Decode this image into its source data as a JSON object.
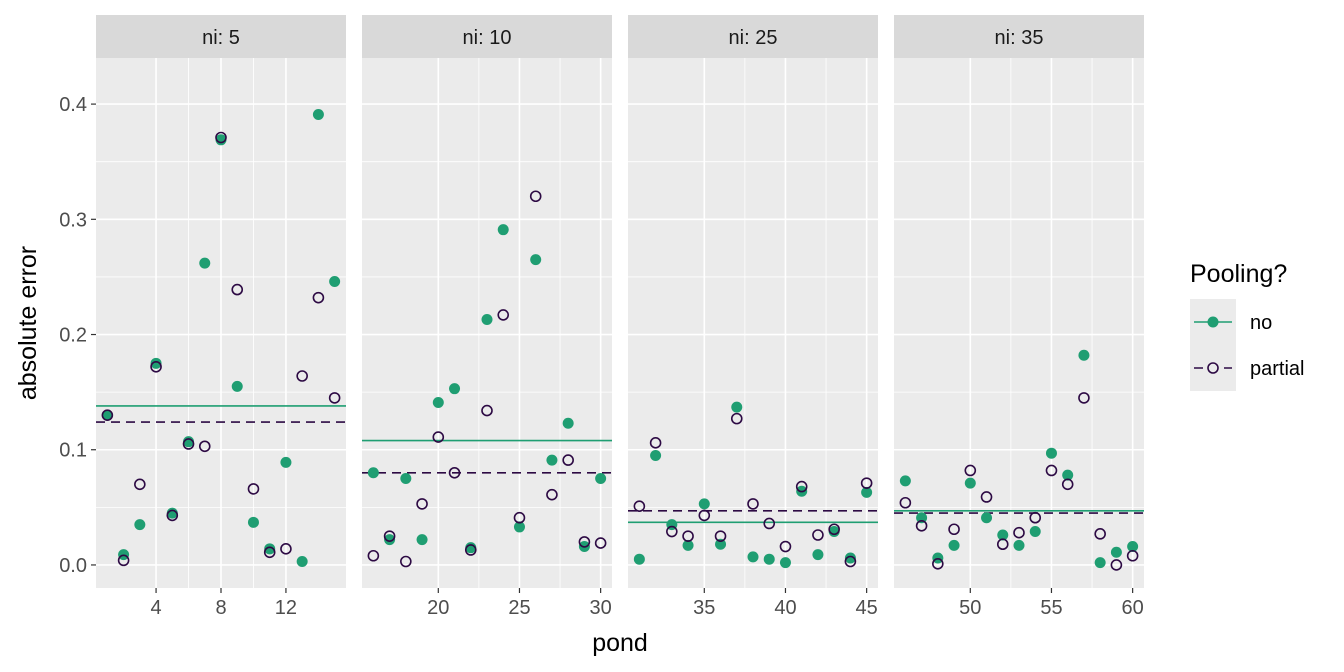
{
  "chart_data": {
    "type": "scatter",
    "xlabel": "pond",
    "ylabel": "absolute error",
    "ylim": [
      -0.02,
      0.44
    ],
    "yticks": [
      0.0,
      0.1,
      0.2,
      0.3,
      0.4
    ],
    "ytick_labels": [
      "0.0",
      "0.1",
      "0.2",
      "0.3",
      "0.4"
    ],
    "grid": true,
    "legend": {
      "title": "Pooling?",
      "position": "right",
      "entries": [
        {
          "label": "no",
          "color": "#1f9e72",
          "marker": "filled-circle",
          "line": "solid"
        },
        {
          "label": "partial",
          "color": "#2d0a44",
          "marker": "open-circle",
          "line": "dashed"
        }
      ]
    },
    "panels": [
      {
        "strip": "ni: 5",
        "xlim": [
          0.3,
          15.7
        ],
        "xticks": [
          4,
          8,
          12
        ],
        "xtick_labels": [
          "4",
          "8",
          "12"
        ],
        "x": [
          1,
          2,
          3,
          4,
          5,
          6,
          7,
          8,
          9,
          10,
          11,
          12,
          13,
          14,
          15
        ],
        "no": [
          0.13,
          0.009,
          0.035,
          0.175,
          0.045,
          0.107,
          0.262,
          0.369,
          0.155,
          0.037,
          0.014,
          0.089,
          0.003,
          0.391,
          0.246
        ],
        "partial": [
          0.13,
          0.004,
          0.07,
          0.172,
          0.043,
          0.105,
          0.103,
          0.371,
          0.239,
          0.066,
          0.011,
          0.014,
          0.164,
          0.232,
          0.145
        ],
        "no_mean": 0.138,
        "partial_mean": 0.124
      },
      {
        "strip": "ni: 10",
        "xlim": [
          15.3,
          30.7
        ],
        "xticks": [
          20,
          25,
          30
        ],
        "xtick_labels": [
          "20",
          "25",
          "30"
        ],
        "x": [
          16,
          17,
          18,
          19,
          20,
          21,
          22,
          23,
          24,
          25,
          26,
          27,
          28,
          29,
          30
        ],
        "no": [
          0.08,
          0.022,
          0.075,
          0.022,
          0.141,
          0.153,
          0.015,
          0.213,
          0.291,
          0.033,
          0.265,
          0.091,
          0.123,
          0.016,
          0.075
        ],
        "partial": [
          0.008,
          0.025,
          0.003,
          0.053,
          0.111,
          0.08,
          0.013,
          0.134,
          0.217,
          0.041,
          0.32,
          0.061,
          0.091,
          0.02,
          0.019
        ],
        "no_mean": 0.108,
        "partial_mean": 0.08
      },
      {
        "strip": "ni: 25",
        "xlim": [
          30.3,
          45.7
        ],
        "xticks": [
          35,
          40,
          45
        ],
        "xtick_labels": [
          "35",
          "40",
          "45"
        ],
        "x": [
          31,
          32,
          33,
          34,
          35,
          36,
          37,
          38,
          39,
          40,
          41,
          42,
          43,
          44,
          45
        ],
        "no": [
          0.005,
          0.095,
          0.035,
          0.017,
          0.053,
          0.018,
          0.137,
          0.007,
          0.005,
          0.002,
          0.064,
          0.009,
          0.029,
          0.006,
          0.063
        ],
        "partial": [
          0.051,
          0.106,
          0.029,
          0.025,
          0.043,
          0.025,
          0.127,
          0.053,
          0.036,
          0.016,
          0.068,
          0.026,
          0.031,
          0.003,
          0.071
        ],
        "no_mean": 0.037,
        "partial_mean": 0.047
      },
      {
        "strip": "ni: 35",
        "xlim": [
          45.3,
          60.7
        ],
        "xticks": [
          50,
          55,
          60
        ],
        "xtick_labels": [
          "50",
          "55",
          "60"
        ],
        "x": [
          46,
          47,
          48,
          49,
          50,
          51,
          52,
          53,
          54,
          55,
          56,
          57,
          58,
          59,
          60
        ],
        "no": [
          0.073,
          0.041,
          0.006,
          0.017,
          0.071,
          0.041,
          0.026,
          0.017,
          0.029,
          0.097,
          0.078,
          0.182,
          0.002,
          0.011,
          0.016
        ],
        "partial": [
          0.054,
          0.034,
          0.001,
          0.031,
          0.082,
          0.059,
          0.018,
          0.028,
          0.041,
          0.082,
          0.07,
          0.145,
          0.027,
          0.0,
          0.008
        ],
        "no_mean": 0.047,
        "partial_mean": 0.045
      }
    ]
  }
}
